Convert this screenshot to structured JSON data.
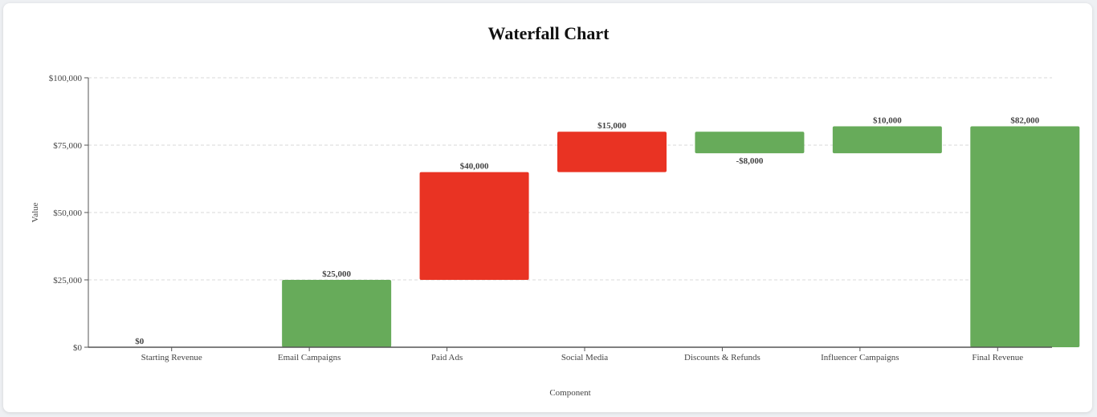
{
  "chart_data": {
    "type": "bar",
    "subtype": "waterfall",
    "title": "Waterfall Chart",
    "xlabel": "Component",
    "ylabel": "Value",
    "ylim": [
      0,
      100000
    ],
    "yticks": [
      {
        "value": 0,
        "label": "$0"
      },
      {
        "value": 25000,
        "label": "$25,000"
      },
      {
        "value": 50000,
        "label": "$50,000"
      },
      {
        "value": 75000,
        "label": "$75,000"
      },
      {
        "value": 100000,
        "label": "$100,000"
      }
    ],
    "grid": true,
    "categories": [
      "Starting Revenue",
      "Email Campaigns",
      "Paid Ads",
      "Social Media",
      "Discounts & Refunds",
      "Influencer Campaigns",
      "Final Revenue"
    ],
    "bars": [
      {
        "category": "Starting Revenue",
        "start": 0,
        "end": 0,
        "label": "$0",
        "color": "#67ab5a",
        "label_position": "above"
      },
      {
        "category": "Email Campaigns",
        "start": 0,
        "end": 25000,
        "label": "$25,000",
        "color": "#67ab5a",
        "label_position": "above"
      },
      {
        "category": "Paid Ads",
        "start": 25000,
        "end": 65000,
        "label": "$40,000",
        "color": "#e93323",
        "label_position": "above"
      },
      {
        "category": "Social Media",
        "start": 65000,
        "end": 80000,
        "label": "$15,000",
        "color": "#e93323",
        "label_position": "above"
      },
      {
        "category": "Discounts & Refunds",
        "start": 80000,
        "end": 72000,
        "label": "-$8,000",
        "color": "#67ab5a",
        "label_position": "below"
      },
      {
        "category": "Influencer Campaigns",
        "start": 72000,
        "end": 82000,
        "label": "$10,000",
        "color": "#67ab5a",
        "label_position": "above"
      },
      {
        "category": "Final Revenue",
        "start": 0,
        "end": 82000,
        "label": "$82,000",
        "color": "#67ab5a",
        "label_position": "above"
      }
    ],
    "colors": {
      "increase": "#67ab5a",
      "decrease": "#e93323",
      "grid": "#d9d9d9",
      "axis": "#555555"
    }
  }
}
